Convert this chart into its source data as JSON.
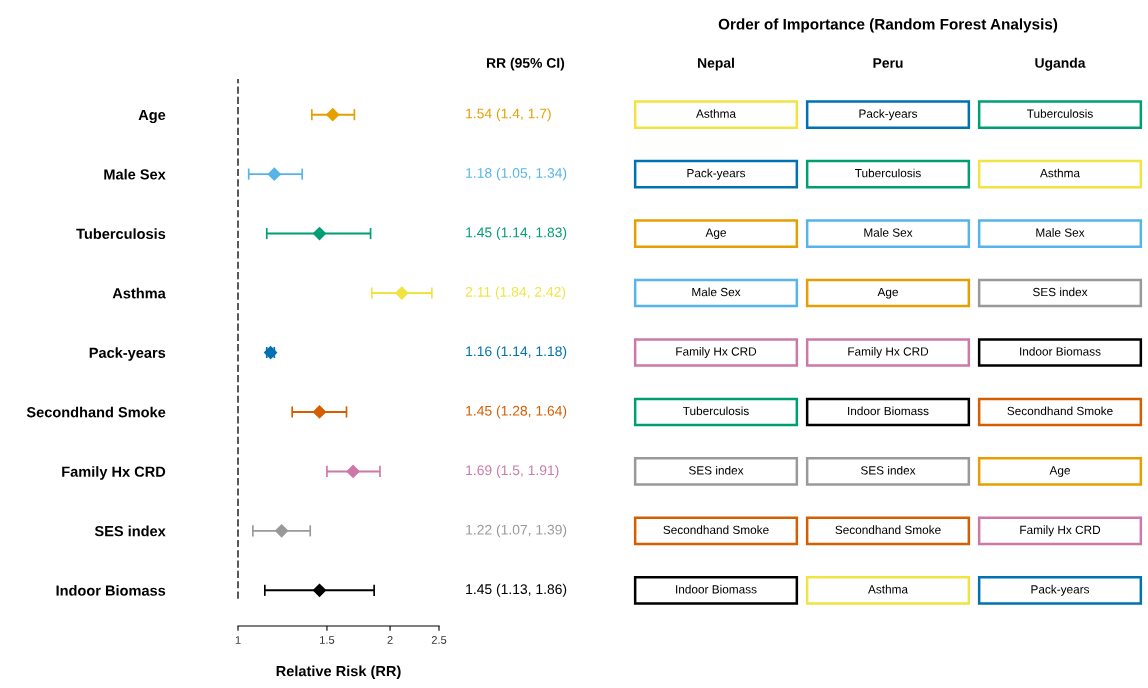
{
  "chart_data": [
    {
      "type": "scatter",
      "orientation": "horizontal",
      "xlabel": "Relative Risk (RR)",
      "annotations": [
        "RR (95% CI)",
        "1.54 (1.4, 1.7)",
        "1.18 (1.05, 1.34)",
        "1.45 (1.14, 1.83)",
        "2.11 (1.84, 2.42)",
        "1.16 (1.14, 1.18)",
        "1.45 (1.28, 1.64)",
        "1.69 (1.5, 1.91)",
        "1.22 (1.07, 1.39)",
        "1.45 (1.13, 1.86)"
      ],
      "categories": [
        "Age",
        "Male Sex",
        "Tuberculosis",
        "Asthma",
        "Pack-years",
        "Secondhand Smoke",
        "Family Hx CRD",
        "SES index",
        "Indoor Biomass"
      ],
      "values": [
        1.54,
        1.18,
        1.45,
        2.11,
        1.16,
        1.45,
        1.69,
        1.22,
        1.45
      ],
      "errors": [
        [
          1.4,
          1.7
        ],
        [
          1.05,
          1.34
        ],
        [
          1.14,
          1.83
        ],
        [
          1.84,
          2.42
        ],
        [
          1.14,
          1.18
        ],
        [
          1.28,
          1.64
        ],
        [
          1.5,
          1.91
        ],
        [
          1.07,
          1.39
        ],
        [
          1.13,
          1.86
        ]
      ],
      "colors": [
        "#e69f00",
        "#56b4e9",
        "#009e73",
        "#f0e442",
        "#0072b2",
        "#d55e00",
        "#cc79a7",
        "#999999",
        "#000000"
      ],
      "log": "x",
      "xlim": [
        1,
        2.5
      ],
      "xticks": [
        1,
        1.5,
        2,
        2.5
      ],
      "marker": "diamond",
      "grid": false,
      "legend": false,
      "ref_lines": [
        {
          "axis": "x",
          "value": 1,
          "line_style": "dashed",
          "color": "#555555"
        }
      ]
    },
    {
      "type": "other",
      "title": "Order of Importance (Random Forest Analysis)",
      "categories": [
        "Nepal",
        "Peru",
        "Uganda"
      ],
      "cell_labels": [
        [
          "Asthma",
          "Pack-years",
          "Tuberculosis"
        ],
        [
          "Pack-years",
          "Tuberculosis",
          "Asthma"
        ],
        [
          "Age",
          "Male Sex",
          "Male Sex"
        ],
        [
          "Male Sex",
          "Age",
          "SES index"
        ],
        [
          "Family Hx CRD",
          "Family Hx CRD",
          "Indoor Biomass"
        ],
        [
          "Tuberculosis",
          "Indoor Biomass",
          "Secondhand Smoke"
        ],
        [
          "SES index",
          "SES index",
          "Age"
        ],
        [
          "Secondhand Smoke",
          "Secondhand Smoke",
          "Family Hx CRD"
        ],
        [
          "Indoor Biomass",
          "Asthma",
          "Pack-years"
        ]
      ],
      "colors": [
        [
          "#f0e442",
          "#0072b2",
          "#009e73"
        ],
        [
          "#0072b2",
          "#009e73",
          "#f0e442"
        ],
        [
          "#e69f00",
          "#56b4e9",
          "#56b4e9"
        ],
        [
          "#56b4e9",
          "#e69f00",
          "#999999"
        ],
        [
          "#cc79a7",
          "#cc79a7",
          "#000000"
        ],
        [
          "#009e73",
          "#000000",
          "#d55e00"
        ],
        [
          "#999999",
          "#999999",
          "#e69f00"
        ],
        [
          "#d55e00",
          "#d55e00",
          "#cc79a7"
        ],
        [
          "#000000",
          "#f0e442",
          "#0072b2"
        ]
      ]
    }
  ]
}
